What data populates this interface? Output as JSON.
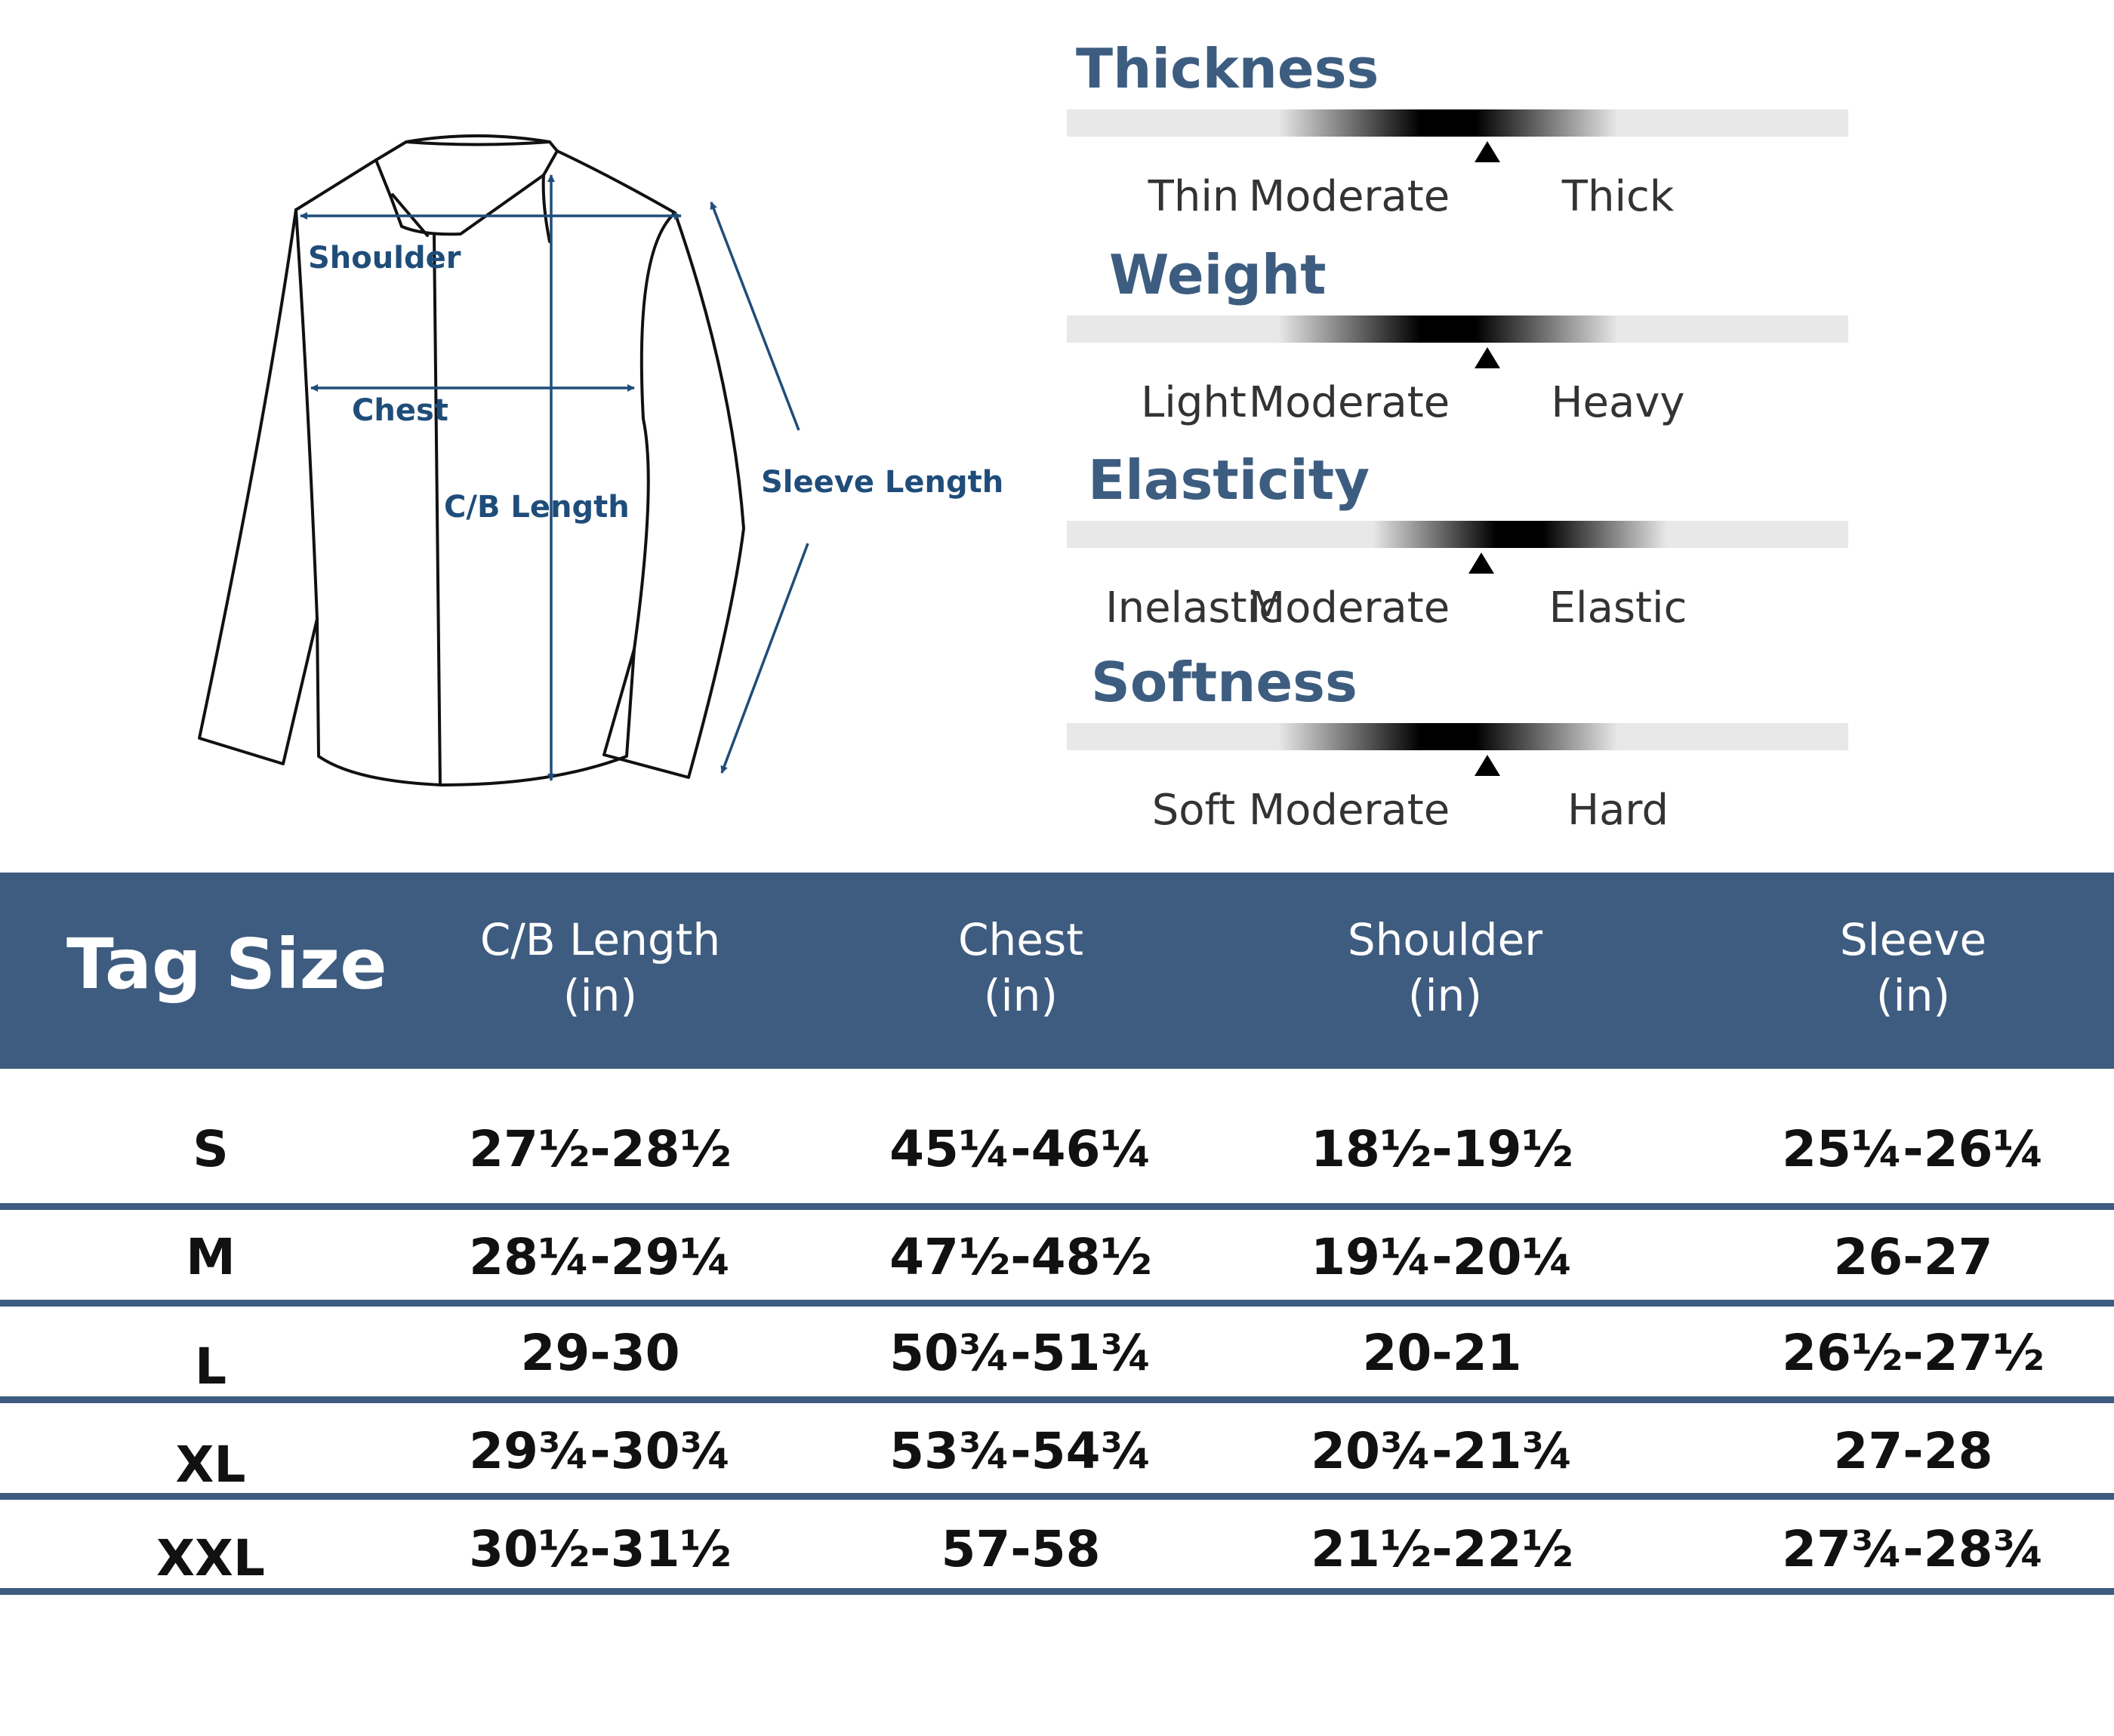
{
  "diagram": {
    "labels": {
      "shoulder": "Shoulder",
      "chest": "Chest",
      "cb_length": "C/B Length",
      "sleeve_length": "Sleeve Length"
    },
    "line_color": "#1f4d7a"
  },
  "attributes": [
    {
      "title": "Thickness",
      "labels": [
        "Thin",
        "Moderate",
        "Thick"
      ],
      "selected": "Moderate"
    },
    {
      "title": "Weight",
      "labels": [
        "Light",
        "Moderate",
        "Heavy"
      ],
      "selected": "Moderate"
    },
    {
      "title": "Elasticity",
      "labels": [
        "Inelastic",
        "Moderate",
        "Elastic"
      ],
      "selected": "Moderate"
    },
    {
      "title": "Softness",
      "labels": [
        "Soft",
        "Moderate",
        "Hard"
      ],
      "selected": "Moderate"
    }
  ],
  "size_table": {
    "header": {
      "tag_size": "Tag Size",
      "columns": [
        {
          "name": "C/B Length",
          "unit": "(in)"
        },
        {
          "name": "Chest",
          "unit": "(in)"
        },
        {
          "name": "Shoulder",
          "unit": "(in)"
        },
        {
          "name": "Sleeve",
          "unit": "(in)"
        }
      ]
    },
    "rows": [
      {
        "size": "S",
        "values": [
          "27½-28½",
          "45¼-46¼",
          "18½-19½",
          "25¼-26¼"
        ]
      },
      {
        "size": "M",
        "values": [
          "28¼-29¼",
          "47½-48½",
          "19¼-20¼",
          "26-27"
        ]
      },
      {
        "size": "L",
        "values": [
          "29-30",
          "50¾-51¾",
          "20-21",
          "26½-27½"
        ]
      },
      {
        "size": "XL",
        "values": [
          "29¾-30¾",
          "53¾-54¾",
          "20¾-21¾",
          "27-28"
        ]
      },
      {
        "size": "XXL",
        "values": [
          "30½-31½",
          "57-58",
          "21½-22½",
          "27¾-28¾"
        ]
      }
    ],
    "colors": {
      "header_bg": "#3e5c7f",
      "separator": "#3e5c7f"
    }
  }
}
